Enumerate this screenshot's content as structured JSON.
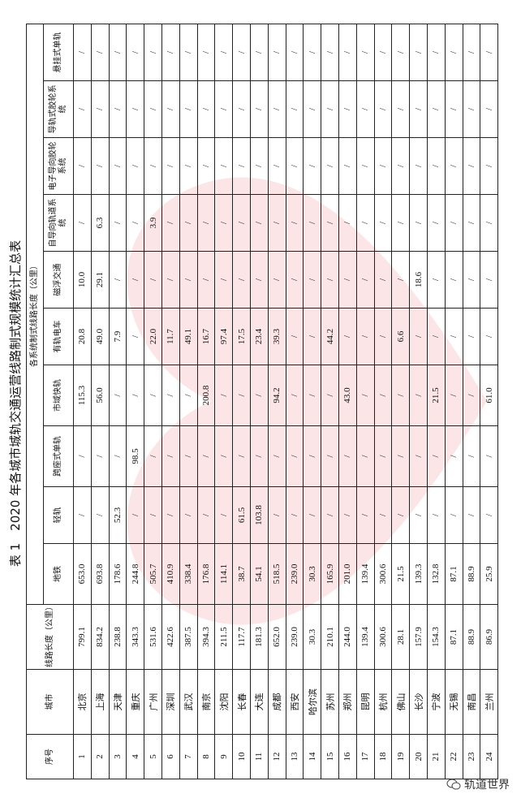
{
  "title": "表 1　2020 年各城市城轨交通运营线路制式规模统计汇总表",
  "table": {
    "headers": {
      "seq": "序号",
      "city": "城市",
      "length": "线路长度（公里）",
      "group": "各系统制式线路长度（公里）",
      "systems": [
        "地铁",
        "轻轨",
        "跨座式单轨",
        "市域快轨",
        "有轨电车",
        "磁浮交通",
        "自导向轨道系统",
        "电子导向胶轮系统",
        "导轨式胶轮系统",
        "悬挂式单轨"
      ]
    },
    "rows": [
      [
        "1",
        "北京",
        "799.1",
        "653.0",
        "/",
        "/",
        "115.3",
        "20.8",
        "10.0",
        "/",
        "/",
        "/",
        "/"
      ],
      [
        "2",
        "上海",
        "834.2",
        "693.8",
        "/",
        "/",
        "56.0",
        "49.0",
        "29.1",
        "6.3",
        "/",
        "/",
        "/"
      ],
      [
        "3",
        "天津",
        "238.8",
        "178.6",
        "52.3",
        "/",
        "/",
        "7.9",
        "/",
        "/",
        "/",
        "/",
        "/"
      ],
      [
        "4",
        "重庆",
        "343.3",
        "244.8",
        "/",
        "98.5",
        "/",
        "/",
        "/",
        "/",
        "/",
        "/",
        "/"
      ],
      [
        "5",
        "广州",
        "531.6",
        "505.7",
        "/",
        "/",
        "/",
        "22.0",
        "/",
        "3.9",
        "/",
        "/",
        "/"
      ],
      [
        "6",
        "深圳",
        "422.6",
        "410.9",
        "/",
        "/",
        "/",
        "11.7",
        "/",
        "/",
        "/",
        "/",
        "/"
      ],
      [
        "7",
        "武汉",
        "387.5",
        "338.4",
        "/",
        "/",
        "/",
        "49.1",
        "/",
        "/",
        "/",
        "/",
        "/"
      ],
      [
        "8",
        "南京",
        "394.3",
        "176.8",
        "/",
        "/",
        "200.8",
        "16.7",
        "/",
        "/",
        "/",
        "/",
        "/"
      ],
      [
        "9",
        "沈阳",
        "211.5",
        "114.1",
        "/",
        "/",
        "/",
        "97.4",
        "/",
        "/",
        "/",
        "/",
        "/"
      ],
      [
        "10",
        "长春",
        "117.7",
        "38.7",
        "61.5",
        "/",
        "/",
        "17.5",
        "/",
        "/",
        "/",
        "/",
        "/"
      ],
      [
        "11",
        "大连",
        "181.3",
        "54.1",
        "103.8",
        "/",
        "/",
        "23.4",
        "/",
        "/",
        "/",
        "/",
        "/"
      ],
      [
        "12",
        "成都",
        "652.0",
        "518.5",
        "/",
        "/",
        "94.2",
        "39.3",
        "/",
        "/",
        "/",
        "/",
        "/"
      ],
      [
        "13",
        "西安",
        "239.0",
        "239.0",
        "/",
        "/",
        "/",
        "/",
        "/",
        "/",
        "/",
        "/",
        "/"
      ],
      [
        "14",
        "哈尔滨",
        "30.3",
        "30.3",
        "/",
        "/",
        "/",
        "/",
        "/",
        "/",
        "/",
        "/",
        "/"
      ],
      [
        "15",
        "苏州",
        "210.1",
        "165.9",
        "/",
        "/",
        "/",
        "44.2",
        "/",
        "/",
        "/",
        "/",
        "/"
      ],
      [
        "16",
        "郑州",
        "244.0",
        "201.0",
        "/",
        "/",
        "43.0",
        "/",
        "/",
        "/",
        "/",
        "/",
        "/"
      ],
      [
        "17",
        "昆明",
        "139.4",
        "139.4",
        "/",
        "/",
        "/",
        "/",
        "/",
        "/",
        "/",
        "/",
        "/"
      ],
      [
        "18",
        "杭州",
        "300.6",
        "300.6",
        "/",
        "/",
        "/",
        "/",
        "/",
        "/",
        "/",
        "/",
        "/"
      ],
      [
        "19",
        "佛山",
        "28.1",
        "21.5",
        "/",
        "/",
        "/",
        "6.6",
        "/",
        "/",
        "/",
        "/",
        "/"
      ],
      [
        "20",
        "长沙",
        "157.9",
        "139.3",
        "/",
        "/",
        "/",
        "/",
        "18.6",
        "/",
        "/",
        "/",
        "/"
      ],
      [
        "21",
        "宁波",
        "154.3",
        "132.8",
        "/",
        "/",
        "21.5",
        "/",
        "/",
        "/",
        "/",
        "/",
        "/"
      ],
      [
        "22",
        "无锡",
        "87.1",
        "87.1",
        "/",
        "/",
        "/",
        "/",
        "/",
        "/",
        "/",
        "/",
        "/"
      ],
      [
        "23",
        "南昌",
        "88.9",
        "88.9",
        "/",
        "/",
        "/",
        "/",
        "/",
        "/",
        "/",
        "/",
        "/"
      ],
      [
        "24",
        "兰州",
        "86.9",
        "25.9",
        "/",
        "/",
        "61.0",
        "/",
        "/",
        "/",
        "/",
        "/",
        "/"
      ]
    ]
  },
  "watermark": "轨道世界"
}
